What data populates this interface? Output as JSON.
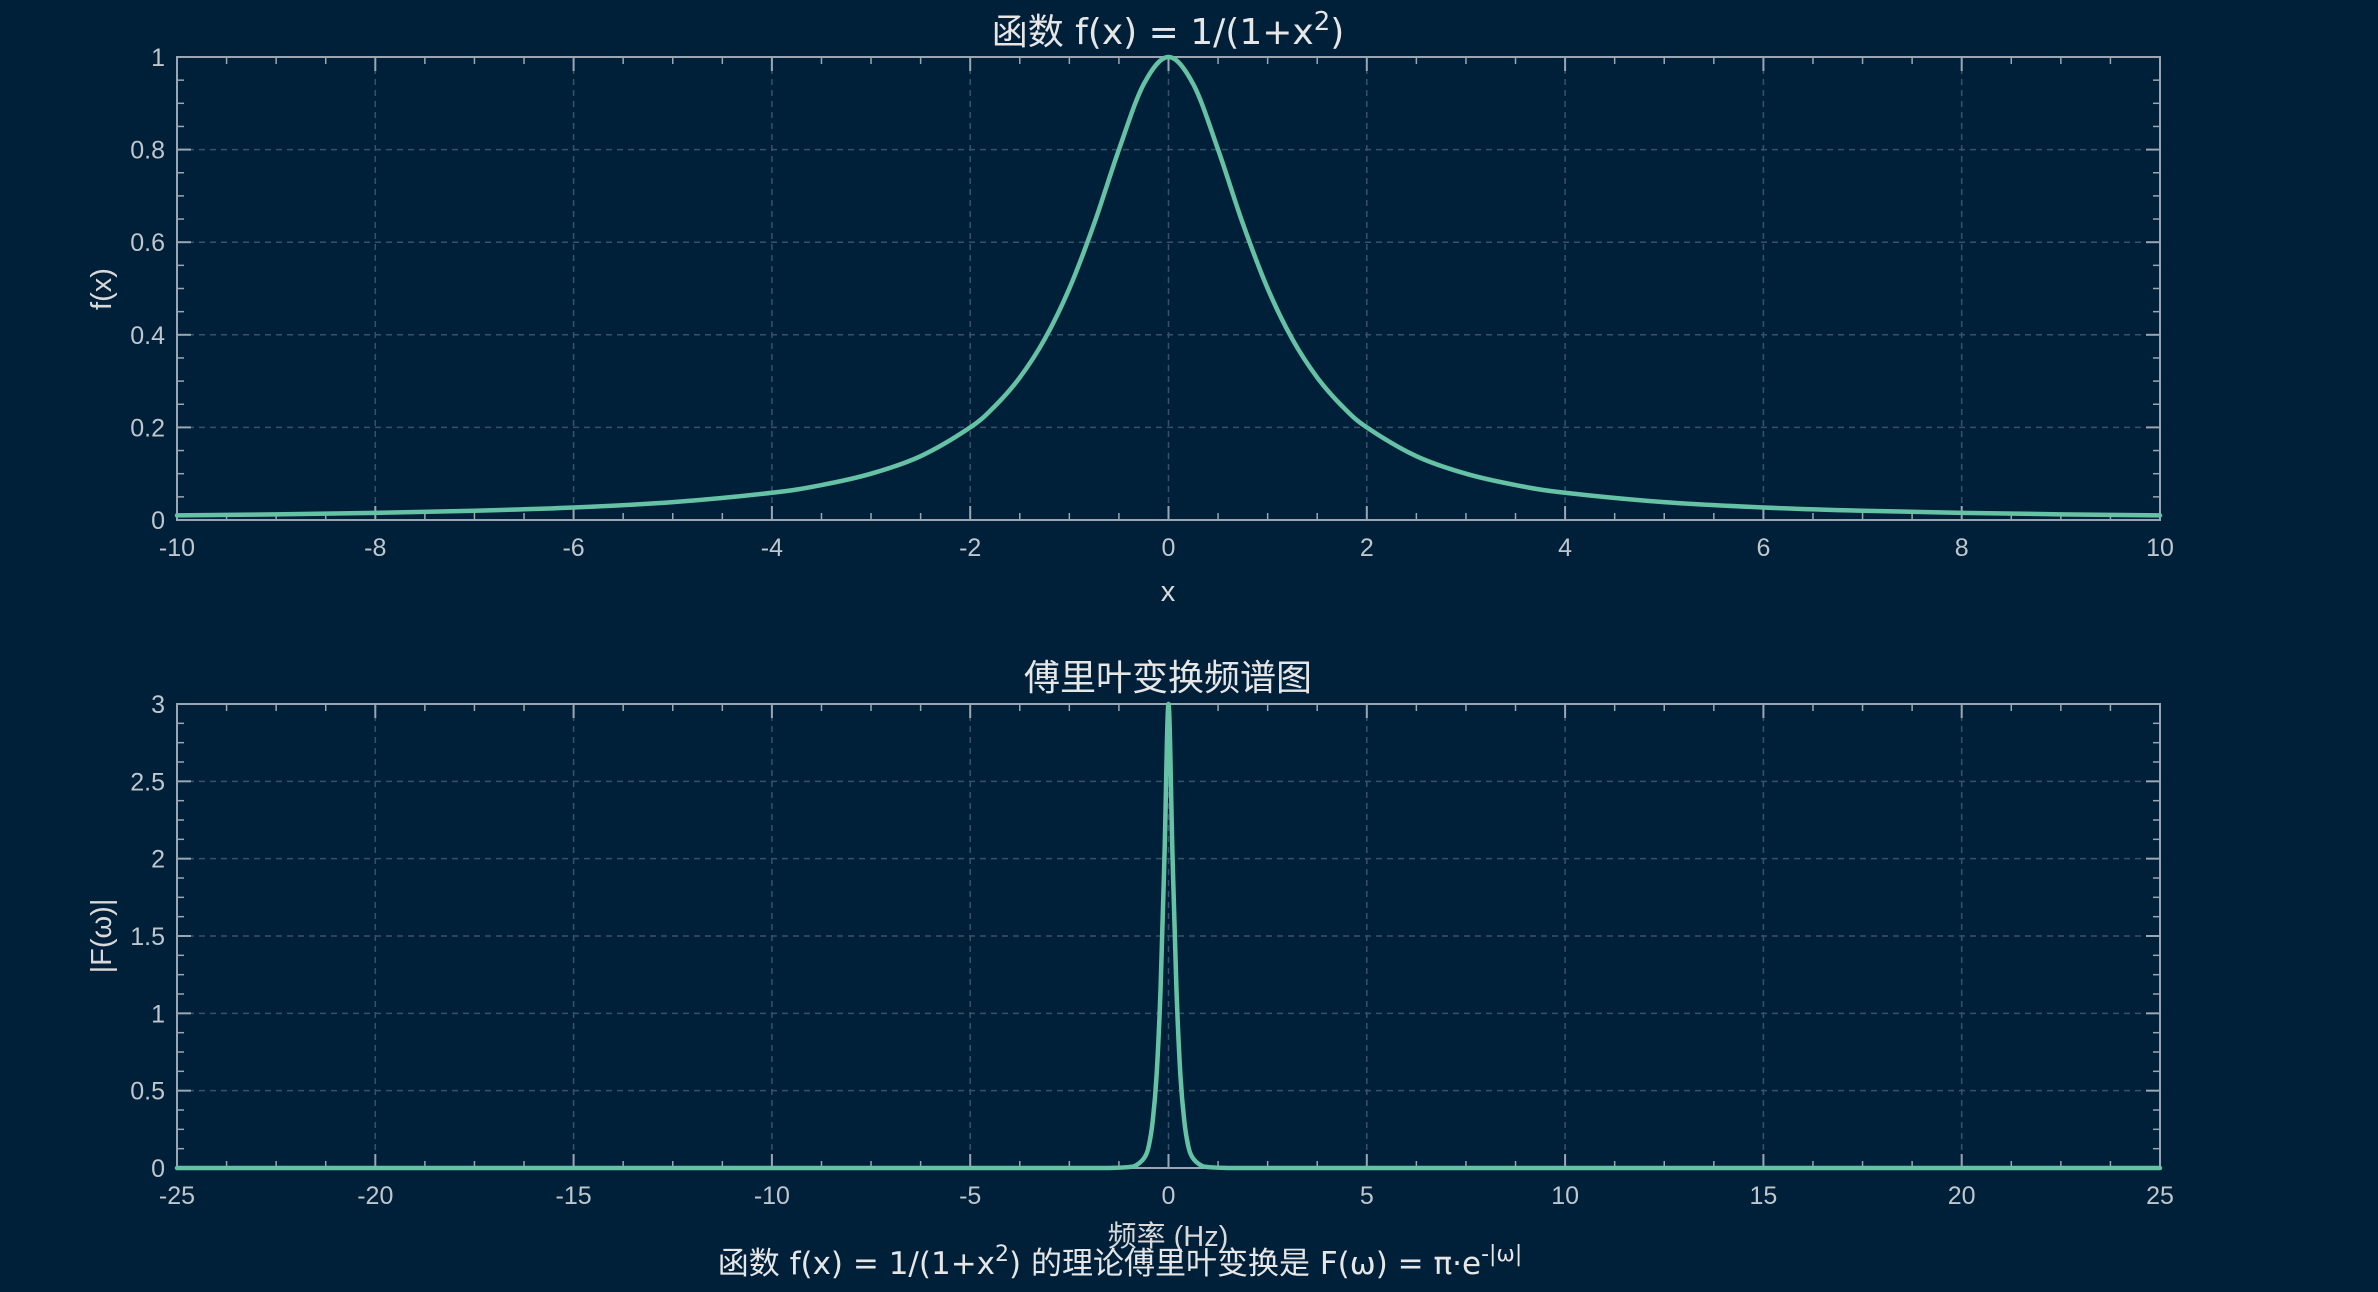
{
  "chart_data": [
    {
      "type": "line",
      "title": "函数 f(x) = 1/(1+x",
      "title_sup": "2",
      "title_end": ")",
      "xlabel": "x",
      "ylabel": "f(x)",
      "xlim": [
        -10,
        10
      ],
      "ylim": [
        0,
        1
      ],
      "xticks": [
        -10,
        -8,
        -6,
        -4,
        -2,
        0,
        2,
        4,
        6,
        8,
        10
      ],
      "xtick_labels": [
        "-10",
        "-8",
        "-6",
        "-4",
        "-2",
        "0",
        "2",
        "4",
        "6",
        "8",
        "10"
      ],
      "yticks": [
        0,
        0.2,
        0.4,
        0.6,
        0.8,
        1
      ],
      "ytick_labels": [
        "0",
        "0.2",
        "0.4",
        "0.6",
        "0.8",
        "1"
      ],
      "grid": true,
      "series": [
        {
          "color": "#66c2a5",
          "x": [
            -10,
            -9,
            -8,
            -7,
            -6,
            -5,
            -4,
            -3.5,
            -3,
            -2.5,
            -2,
            -1.75,
            -1.5,
            -1.25,
            -1,
            -0.75,
            -0.5,
            -0.25,
            0,
            0.25,
            0.5,
            0.75,
            1,
            1.25,
            1.5,
            1.75,
            2,
            2.5,
            3,
            3.5,
            4,
            5,
            6,
            7,
            8,
            9,
            10
          ],
          "y": [
            0.0099,
            0.0122,
            0.0154,
            0.02,
            0.027,
            0.0385,
            0.0588,
            0.0755,
            0.1,
            0.1379,
            0.2,
            0.2462,
            0.3077,
            0.3902,
            0.5,
            0.64,
            0.8,
            0.9412,
            1,
            0.9412,
            0.8,
            0.64,
            0.5,
            0.3902,
            0.3077,
            0.2462,
            0.2,
            0.1379,
            0.1,
            0.0755,
            0.0588,
            0.0385,
            0.027,
            0.02,
            0.0154,
            0.0122,
            0.0099
          ]
        }
      ]
    },
    {
      "type": "line",
      "title": "傅里叶变换频谱图",
      "xlabel": "频率 (Hz)",
      "ylabel": "|F(ω)|",
      "xlim": [
        -25,
        25
      ],
      "ylim": [
        0,
        3
      ],
      "xticks": [
        -25,
        -20,
        -15,
        -10,
        -5,
        0,
        5,
        10,
        15,
        20,
        25
      ],
      "xtick_labels": [
        "-25",
        "-20",
        "-15",
        "-10",
        "-5",
        "0",
        "5",
        "10",
        "15",
        "20",
        "25"
      ],
      "yticks": [
        0,
        0.5,
        1,
        1.5,
        2,
        2.5,
        3
      ],
      "ytick_labels": [
        "0",
        "0.5",
        "1",
        "1.5",
        "2",
        "2.5",
        "3"
      ],
      "grid": true,
      "series": [
        {
          "color": "#66c2a5",
          "x": [
            -25,
            -5,
            -2,
            -1.5,
            -1,
            -0.8,
            -0.6,
            -0.5,
            -0.4,
            -0.3,
            -0.2,
            -0.1,
            0,
            0.1,
            0.2,
            0.3,
            0.4,
            0.5,
            0.6,
            0.8,
            1,
            1.5,
            2,
            5,
            25
          ],
          "y": [
            0,
            0,
            0,
            0.0003,
            0.006,
            0.02,
            0.07,
            0.14,
            0.3,
            0.6,
            1.16,
            2.03,
            3.0,
            2.03,
            1.16,
            0.6,
            0.3,
            0.14,
            0.07,
            0.02,
            0.006,
            0.0003,
            0,
            0,
            0
          ]
        }
      ]
    }
  ],
  "annotation": {
    "prefix": "函数 f(x) = 1/(1+x",
    "sup1": "2",
    "middle": ") 的理论傅里叶变换是 F(ω) = π·e",
    "sup2": "-|ω|"
  },
  "colors": {
    "background": "#00203a",
    "axes_edge": "#9aa6b2",
    "grid": "#3a5068",
    "line": "#66c2a5"
  }
}
